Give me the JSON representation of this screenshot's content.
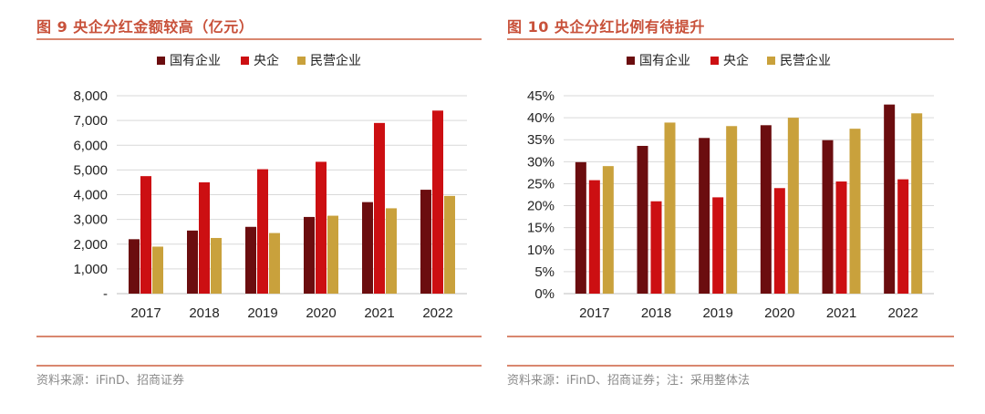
{
  "colors": {
    "soe": "#6b0d0f",
    "central": "#cc0f12",
    "private": "#c9a13c",
    "title": "#c8513a",
    "rule": "#d9876f",
    "grid": "#d9d9d9",
    "axis": "#444444",
    "source_text": "#8a8a8a"
  },
  "left_panel": {
    "title": "图 9 央企分红金额较高（亿元）",
    "source": "资料来源：iFinD、招商证券"
  },
  "right_panel": {
    "title": "图 10 央企分红比例有待提升",
    "source": "资料来源：iFinD、招商证券；注：采用整体法"
  },
  "chart_data": [
    {
      "type": "bar",
      "title": "央企分红金额较高（亿元）",
      "categories": [
        "2017",
        "2018",
        "2019",
        "2020",
        "2021",
        "2022"
      ],
      "series": [
        {
          "name": "国有企业",
          "color_key": "soe",
          "values": [
            2200,
            2550,
            2700,
            3100,
            3700,
            4200
          ]
        },
        {
          "name": "央企",
          "color_key": "central",
          "values": [
            4750,
            4500,
            5030,
            5330,
            6900,
            7400
          ]
        },
        {
          "name": "民营企业",
          "color_key": "private",
          "values": [
            1900,
            2250,
            2450,
            3150,
            3450,
            3950
          ]
        }
      ],
      "ylim": [
        0,
        8000
      ],
      "yticks": [
        0,
        1000,
        2000,
        3000,
        4000,
        5000,
        6000,
        7000,
        8000
      ],
      "ytick_labels": [
        "-",
        "1,000",
        "2,000",
        "3,000",
        "4,000",
        "5,000",
        "6,000",
        "7,000",
        "8,000"
      ],
      "grid": true,
      "legend": "top-center",
      "xlabel": "",
      "ylabel": ""
    },
    {
      "type": "bar",
      "title": "央企分红比例有待提升",
      "categories": [
        "2017",
        "2018",
        "2019",
        "2020",
        "2021",
        "2022"
      ],
      "series": [
        {
          "name": "国有企业",
          "color_key": "soe",
          "values": [
            29.9,
            33.6,
            35.4,
            38.3,
            34.9,
            43.0
          ]
        },
        {
          "name": "央企",
          "color_key": "central",
          "values": [
            25.8,
            21.0,
            21.9,
            24.0,
            25.5,
            26.0
          ]
        },
        {
          "name": "民营企业",
          "color_key": "private",
          "values": [
            29.0,
            38.9,
            38.1,
            40.0,
            37.5,
            41.0
          ]
        }
      ],
      "ylim": [
        0,
        45
      ],
      "yticks": [
        0,
        5,
        10,
        15,
        20,
        25,
        30,
        35,
        40,
        45
      ],
      "ytick_labels": [
        "0%",
        "5%",
        "10%",
        "15%",
        "20%",
        "25%",
        "30%",
        "35%",
        "40%",
        "45%"
      ],
      "grid": true,
      "legend": "top-center",
      "xlabel": "",
      "ylabel": ""
    }
  ]
}
